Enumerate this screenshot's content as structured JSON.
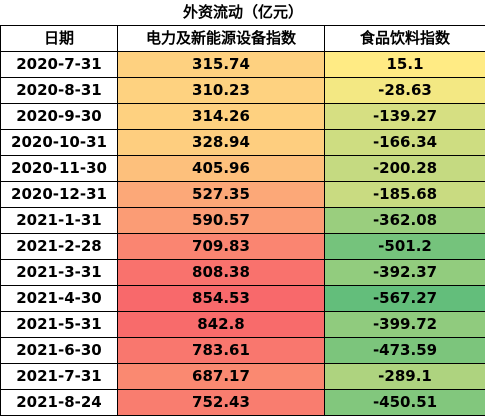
{
  "table": {
    "title": "外资流动（亿元）",
    "headers": [
      "日期",
      "电力及新能源设备指数",
      "食品饮料指数"
    ],
    "rows": [
      {
        "date": "2020-7-31",
        "power": "315.74",
        "food": "15.1"
      },
      {
        "date": "2020-8-31",
        "power": "310.23",
        "food": "-28.63"
      },
      {
        "date": "2020-9-30",
        "power": "314.26",
        "food": "-139.27"
      },
      {
        "date": "2020-10-31",
        "power": "328.94",
        "food": "-166.34"
      },
      {
        "date": "2020-11-30",
        "power": "405.96",
        "food": "-200.28"
      },
      {
        "date": "2020-12-31",
        "power": "527.35",
        "food": "-185.68"
      },
      {
        "date": "2021-1-31",
        "power": "590.57",
        "food": "-362.08"
      },
      {
        "date": "2021-2-28",
        "power": "709.83",
        "food": "-501.2"
      },
      {
        "date": "2021-3-31",
        "power": "808.38",
        "food": "-392.37"
      },
      {
        "date": "2021-4-30",
        "power": "854.53",
        "food": "-567.27"
      },
      {
        "date": "2021-5-31",
        "power": "842.8",
        "food": "-399.72"
      },
      {
        "date": "2021-6-30",
        "power": "783.61",
        "food": "-473.59"
      },
      {
        "date": "2021-7-31",
        "power": "687.17",
        "food": "-289.1"
      },
      {
        "date": "2021-8-24",
        "power": "752.43",
        "food": "-450.51"
      }
    ]
  },
  "colors": {
    "power_low": "#fed280",
    "power_high": "#f8696b",
    "food_high": "#ffeb84",
    "food_low": "#63be7b"
  }
}
